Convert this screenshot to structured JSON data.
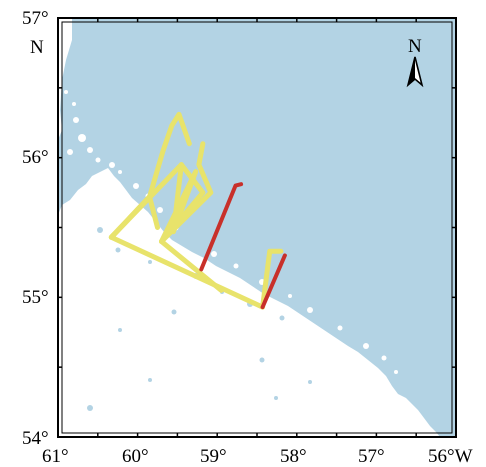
{
  "map": {
    "lat_labels": [
      "57°",
      "56°",
      "55°",
      "54°"
    ],
    "lat_label_suffix": "N",
    "lon_labels": [
      "61°",
      "60°",
      "59°",
      "58°",
      "57°",
      "56°W"
    ],
    "north_arrow_label": "N",
    "lon_range_w": [
      61,
      56
    ],
    "lat_range_n": [
      54,
      57
    ],
    "colors": {
      "sea": "#b3d3e4",
      "land": "#ffffff",
      "track_yellow": "#e8e36b",
      "track_red": "#c8302a",
      "frame": "#000000"
    }
  },
  "tracks": {
    "yellow": [
      [
        [
          60.33,
          55.43
        ],
        [
          59.85,
          55.72
        ],
        [
          59.75,
          55.5
        ]
      ],
      [
        [
          59.85,
          55.72
        ],
        [
          59.68,
          56.05
        ],
        [
          59.57,
          56.23
        ],
        [
          59.48,
          56.31
        ],
        [
          59.35,
          56.1
        ]
      ],
      [
        [
          59.85,
          55.72
        ],
        [
          60.33,
          55.43
        ],
        [
          58.43,
          54.93
        ]
      ],
      [
        [
          60.33,
          55.43
        ],
        [
          59.45,
          55.95
        ],
        [
          59.18,
          55.75
        ],
        [
          59.7,
          55.4
        ],
        [
          58.95,
          55.05
        ]
      ],
      [
        [
          59.45,
          55.95
        ],
        [
          59.55,
          55.47
        ],
        [
          59.27,
          55.9
        ],
        [
          59.7,
          55.4
        ]
      ],
      [
        [
          59.18,
          56.1
        ],
        [
          59.23,
          55.95
        ],
        [
          59.08,
          55.75
        ],
        [
          59.7,
          55.4
        ]
      ],
      [
        [
          58.43,
          54.93
        ],
        [
          58.34,
          55.33
        ],
        [
          58.2,
          55.33
        ]
      ]
    ],
    "red": [
      [
        [
          59.2,
          55.2
        ],
        [
          58.77,
          55.8
        ],
        [
          58.7,
          55.81
        ]
      ],
      [
        [
          58.43,
          54.93
        ],
        [
          58.15,
          55.3
        ]
      ]
    ]
  }
}
